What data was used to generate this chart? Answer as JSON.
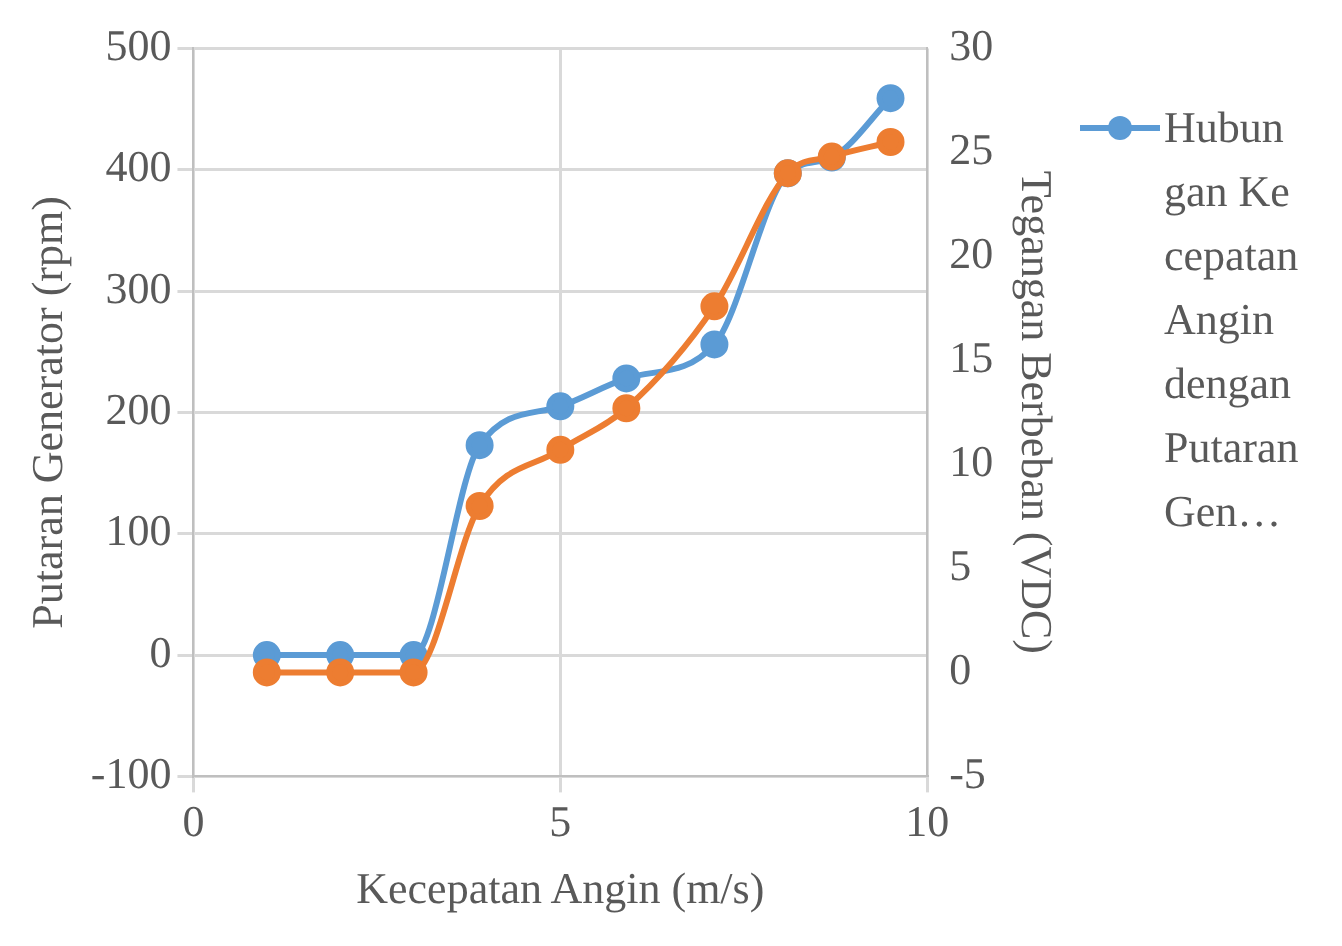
{
  "chart_data": {
    "type": "line",
    "xlabel": "Kecepatan Angin (m/s)",
    "ylabel": "Putaran Generator (rpm)",
    "y2label": "Tegangan Berbeban (VDC)",
    "x": [
      1,
      2,
      3,
      3.9,
      5,
      5.9,
      7.1,
      8.1,
      8.7,
      9.5
    ],
    "series": [
      {
        "name": "Hubungan Kecepatan Angin dengan Putaran Gen…",
        "color": "#5b9bd5",
        "values": [
          0,
          0,
          0,
          173,
          205,
          228,
          256,
          397,
          410,
          459
        ]
      },
      {
        "color": "#ed7d31",
        "axis": "y2",
        "values": [
          0,
          0,
          0,
          8.0,
          10.7,
          12.7,
          17.6,
          24.0,
          24.8,
          25.5
        ]
      }
    ],
    "xlim": [
      0,
      10
    ],
    "xticks": [
      0,
      5,
      10
    ],
    "ylim": [
      -100,
      500
    ],
    "yticks": [
      -100,
      0,
      100,
      200,
      300,
      400,
      500
    ],
    "y2lim": [
      -5,
      30
    ],
    "y2ticks": [
      -5,
      0,
      5,
      10,
      15,
      20,
      25,
      30
    ],
    "grid": true,
    "legend": "right",
    "marker": "circle",
    "line_style": "solid"
  }
}
